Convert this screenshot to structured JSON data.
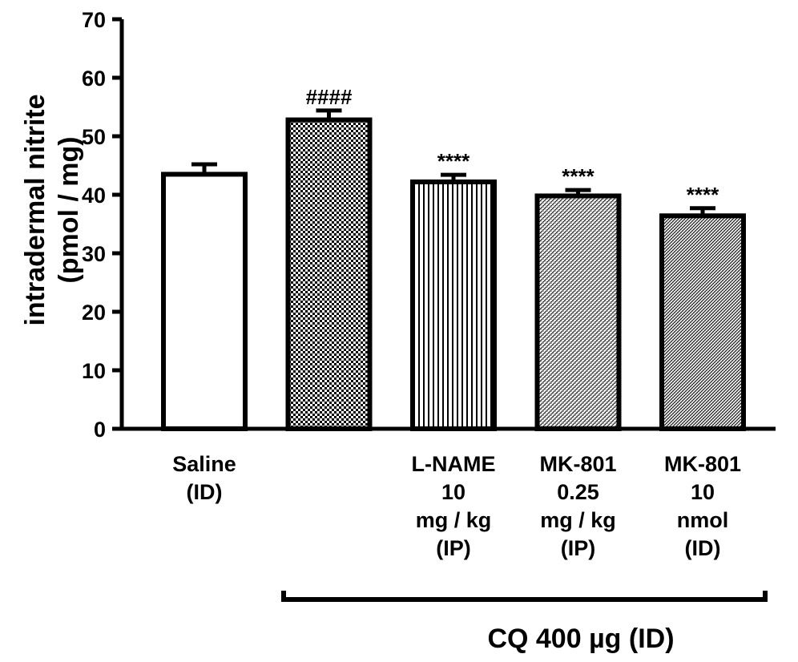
{
  "chart_data": {
    "type": "bar",
    "ylabel_line1": "intradermal nitrite",
    "ylabel_line2": "(pmol / mg)",
    "ylim": [
      0,
      70
    ],
    "yticks": [
      0,
      10,
      20,
      30,
      40,
      50,
      60,
      70
    ],
    "categories": [
      {
        "lines": [
          "Saline",
          "(ID)"
        ]
      },
      {
        "lines": []
      },
      {
        "lines": [
          "L-NAME",
          "10",
          "mg / kg",
          "(IP)"
        ]
      },
      {
        "lines": [
          "MK-801",
          "0.25",
          "mg / kg",
          "(IP)"
        ]
      },
      {
        "lines": [
          "MK-801",
          "10",
          "nmol",
          "(ID)"
        ]
      }
    ],
    "values": [
      43.5,
      52.8,
      42.2,
      39.8,
      36.4
    ],
    "errors": [
      1.7,
      1.6,
      1.2,
      1.0,
      1.3
    ],
    "patterns": [
      "open",
      "checkerboard",
      "vertical-lines",
      "diagonal-hatch",
      "diagonal-hatch-dense"
    ],
    "annotations": [
      "",
      "####",
      "****",
      "****",
      "****"
    ],
    "group_label": "CQ 400 µg (ID)"
  }
}
